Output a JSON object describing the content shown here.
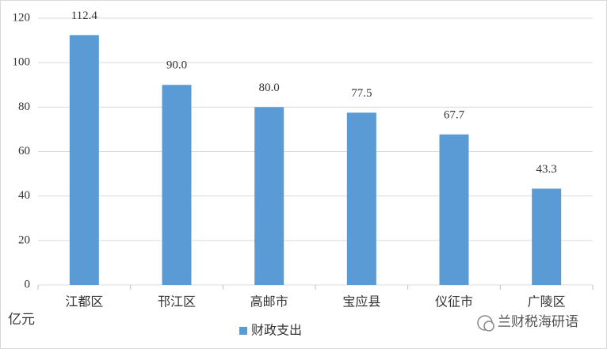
{
  "chart_data": {
    "type": "bar",
    "y_axis_label": "亿元",
    "categories": [
      "江都区",
      "邗江区",
      "高邮市",
      "宝应县",
      "仪征市",
      "广陵区"
    ],
    "series": [
      {
        "name": "财政支出",
        "color": "#5b9bd5",
        "values": [
          112.4,
          90.0,
          80.0,
          77.5,
          67.7,
          43.3
        ],
        "value_labels": [
          "112.4",
          "90.0",
          "80.0",
          "77.5",
          "67.7",
          "43.3"
        ]
      }
    ],
    "ylim": [
      0,
      120
    ],
    "yticks": [
      0,
      20,
      40,
      60,
      80,
      100,
      120
    ],
    "grid": true,
    "legend": "bottom",
    "watermark": "兰财税海研语"
  }
}
